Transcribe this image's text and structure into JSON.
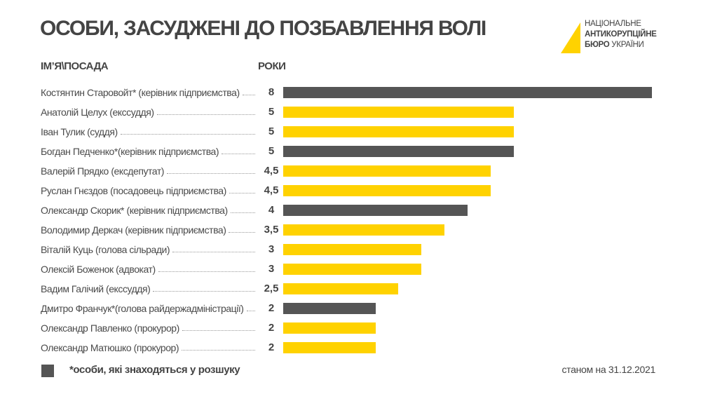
{
  "header": {
    "title": "ОСОБИ, ЗАСУДЖЕНІ ДО ПОЗБАВЛЕННЯ ВОЛІ",
    "logo": {
      "line1": "НАЦІОНАЛЬНЕ",
      "line2": "АНТИКОРУПЦІЙНЕ",
      "line3_bold": "БЮРО",
      "line3": " УКРАЇНИ"
    }
  },
  "colors": {
    "wanted": "#555555",
    "default": "#FFD200"
  },
  "chart_data": {
    "type": "bar",
    "orientation": "horizontal",
    "category_header": "ІМ’Я\\ПОСАДА",
    "value_header": "РОКИ",
    "xlim": [
      0,
      8
    ],
    "rows": [
      {
        "label": "Костянтин Старовойт* (керівник підприємства)",
        "value": 8,
        "display": "8",
        "wanted": true
      },
      {
        "label": "Анатолій Целух (екссуддя)",
        "value": 5,
        "display": "5",
        "wanted": false
      },
      {
        "label": "Іван Тулик (суддя)",
        "value": 5,
        "display": "5",
        "wanted": false
      },
      {
        "label": "Богдан Педченко*(керівник підприємства)",
        "value": 5,
        "display": "5",
        "wanted": true
      },
      {
        "label": "Валерій Прядко (ексдепутат)",
        "value": 4.5,
        "display": "4,5",
        "wanted": false
      },
      {
        "label": "Руслан Гнєздов (посадовець підприємства)",
        "value": 4.5,
        "display": "4,5",
        "wanted": false
      },
      {
        "label": "Олександр Скорик* (керівник підприємства)",
        "value": 4,
        "display": "4",
        "wanted": true
      },
      {
        "label": "Володимир Деркач (керівник підприємства)",
        "value": 3.5,
        "display": "3,5",
        "wanted": false
      },
      {
        "label": "Віталій Куць (голова сільради)",
        "value": 3,
        "display": "3",
        "wanted": false
      },
      {
        "label": "Олексій Боженок (адвокат)",
        "value": 3,
        "display": "3",
        "wanted": false
      },
      {
        "label": "Вадим Галічий (екссуддя)",
        "value": 2.5,
        "display": "2,5",
        "wanted": false
      },
      {
        "label": "Дмитро Франчук*(голова райдержадміністрації)",
        "value": 2,
        "display": "2",
        "wanted": true
      },
      {
        "label": "Олександр Павленко (прокурор)",
        "value": 2,
        "display": "2",
        "wanted": false
      },
      {
        "label": "Олександр Матюшко (прокурор)",
        "value": 2,
        "display": "2",
        "wanted": false
      }
    ],
    "legend": "*особи, які знаходяться у розшуку",
    "note": "станом на 31.12.2021"
  }
}
